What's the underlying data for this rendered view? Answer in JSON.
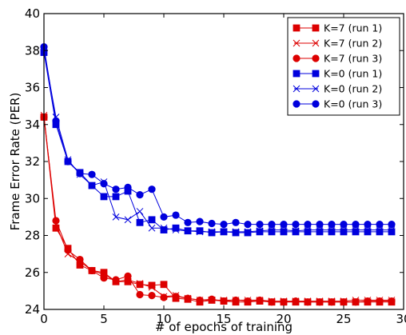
{
  "chart_data": {
    "type": "line",
    "title": "",
    "xlabel": "# of epochs of training",
    "ylabel": "Frame Error Rate (PER)",
    "xlim": [
      0,
      30
    ],
    "ylim": [
      24,
      40
    ],
    "xticks": [
      "0",
      "5",
      "10",
      "15",
      "20",
      "25",
      "30"
    ],
    "yticks": [
      "24",
      "26",
      "28",
      "30",
      "32",
      "34",
      "36",
      "38",
      "40"
    ],
    "grid": false,
    "legend_position": "top-right",
    "x": [
      0,
      1,
      2,
      3,
      4,
      5,
      6,
      7,
      8,
      9,
      10,
      11,
      12,
      13,
      14,
      15,
      16,
      17,
      18,
      19,
      20,
      21,
      22,
      23,
      24,
      25,
      26,
      27,
      28,
      29
    ],
    "series": [
      {
        "name": "K=7 (run 1)",
        "color": "#dd0000",
        "marker": "square",
        "values": [
          34.4,
          28.4,
          27.3,
          26.4,
          26.1,
          26.0,
          25.5,
          25.5,
          25.35,
          25.3,
          25.35,
          24.6,
          24.55,
          24.4,
          24.5,
          24.45,
          24.4,
          24.4,
          24.45,
          24.4,
          24.4,
          24.4,
          24.4,
          24.4,
          24.4,
          24.4,
          24.4,
          24.4,
          24.4,
          24.4
        ]
      },
      {
        "name": "K=7 (run 2)",
        "color": "#dd0000",
        "marker": "x",
        "values": [
          34.5,
          28.6,
          27.0,
          26.6,
          26.1,
          25.9,
          25.5,
          25.6,
          25.4,
          25.2,
          24.7,
          24.75,
          24.6,
          24.5,
          24.5,
          24.5,
          24.5,
          24.5,
          24.5,
          24.45,
          24.45,
          24.45,
          24.45,
          24.45,
          24.45,
          24.45,
          24.5,
          24.5,
          24.5,
          24.5
        ]
      },
      {
        "name": "K=7 (run 3)",
        "color": "#dd0000",
        "marker": "circle",
        "values": [
          34.4,
          28.8,
          27.2,
          26.7,
          26.1,
          25.7,
          25.6,
          25.8,
          24.8,
          24.75,
          24.65,
          24.7,
          24.6,
          24.5,
          24.55,
          24.45,
          24.5,
          24.45,
          24.5,
          24.4,
          24.4,
          24.45,
          24.4,
          24.4,
          24.4,
          24.4,
          24.4,
          24.45,
          24.45,
          24.45
        ]
      },
      {
        "name": "K=0 (run 1)",
        "color": "#0000dd",
        "marker": "square",
        "values": [
          37.9,
          34.0,
          32.0,
          31.4,
          30.7,
          30.1,
          30.1,
          30.4,
          28.7,
          28.85,
          28.3,
          28.4,
          28.25,
          28.25,
          28.15,
          28.2,
          28.15,
          28.15,
          28.2,
          28.2,
          28.2,
          28.2,
          28.2,
          28.2,
          28.2,
          28.2,
          28.2,
          28.2,
          28.2,
          28.2
        ]
      },
      {
        "name": "K=0 (run 2)",
        "color": "#0000dd",
        "marker": "x",
        "values": [
          38.0,
          34.4,
          32.1,
          31.3,
          30.7,
          30.9,
          29.0,
          28.85,
          29.3,
          28.4,
          28.4,
          28.3,
          28.25,
          28.2,
          28.2,
          28.2,
          28.2,
          28.2,
          28.25,
          28.3,
          28.3,
          28.25,
          28.3,
          28.3,
          28.3,
          28.3,
          28.3,
          28.3,
          28.3,
          28.3
        ]
      },
      {
        "name": "K=0 (run 3)",
        "color": "#0000dd",
        "marker": "circle",
        "values": [
          38.2,
          34.2,
          32.0,
          31.35,
          31.3,
          30.8,
          30.5,
          30.6,
          30.2,
          30.5,
          29.0,
          29.1,
          28.7,
          28.75,
          28.65,
          28.6,
          28.7,
          28.6,
          28.6,
          28.6,
          28.6,
          28.6,
          28.6,
          28.6,
          28.6,
          28.6,
          28.6,
          28.6,
          28.6,
          28.6
        ]
      }
    ]
  }
}
